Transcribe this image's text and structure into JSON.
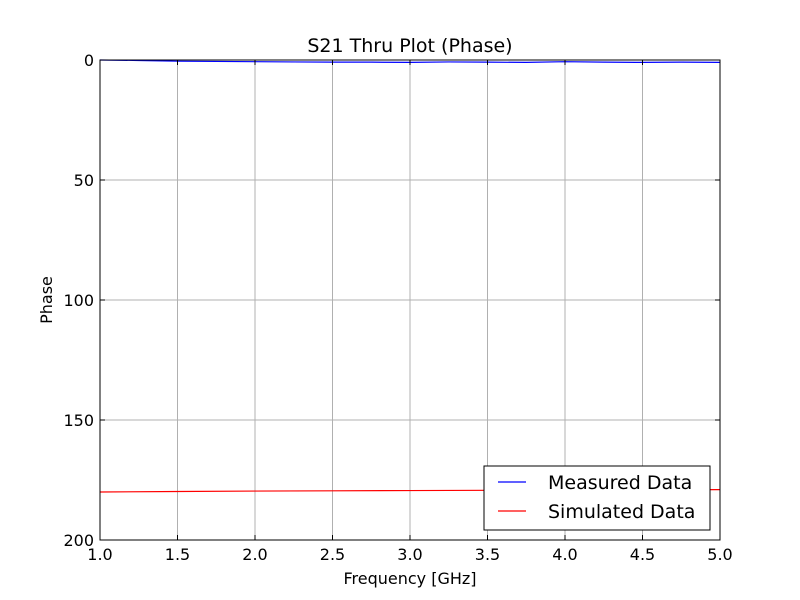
{
  "chart_data": {
    "type": "line",
    "title": "S21 Thru Plot (Phase)",
    "xlabel": "Frequency [GHz]",
    "ylabel": "Phase",
    "xlim": [
      1.0,
      5.0
    ],
    "ylim": [
      200,
      0
    ],
    "y_inverted": true,
    "grid": true,
    "legend_position": "lower-right",
    "x_ticks": [
      1.0,
      1.5,
      2.0,
      2.5,
      3.0,
      3.5,
      4.0,
      4.5,
      5.0
    ],
    "x_tick_labels": [
      "1.0",
      "1.5",
      "2.0",
      "2.5",
      "3.0",
      "3.5",
      "4.0",
      "4.5",
      "5.0"
    ],
    "y_ticks": [
      0,
      50,
      100,
      150,
      200
    ],
    "y_tick_labels": [
      "0",
      "50",
      "100",
      "150",
      "200"
    ],
    "series": [
      {
        "name": "Measured Data",
        "color": "#0000ff",
        "x": [
          1.0,
          1.25,
          1.5,
          1.75,
          2.0,
          2.25,
          2.5,
          2.75,
          3.0,
          3.25,
          3.5,
          3.75,
          4.0,
          4.25,
          4.5,
          4.75,
          5.0
        ],
        "y": [
          0.0,
          0.2,
          0.5,
          0.6,
          0.7,
          0.8,
          0.9,
          0.9,
          1.0,
          0.8,
          0.9,
          1.0,
          0.7,
          0.9,
          1.0,
          0.9,
          1.0
        ]
      },
      {
        "name": "Simulated Data",
        "color": "#ff0000",
        "x": [
          1.0,
          1.5,
          2.0,
          2.5,
          3.0,
          3.5,
          4.0,
          4.5,
          5.0
        ],
        "y": [
          180.0,
          179.8,
          179.6,
          179.5,
          179.4,
          179.3,
          179.2,
          179.1,
          179.0
        ]
      }
    ]
  }
}
